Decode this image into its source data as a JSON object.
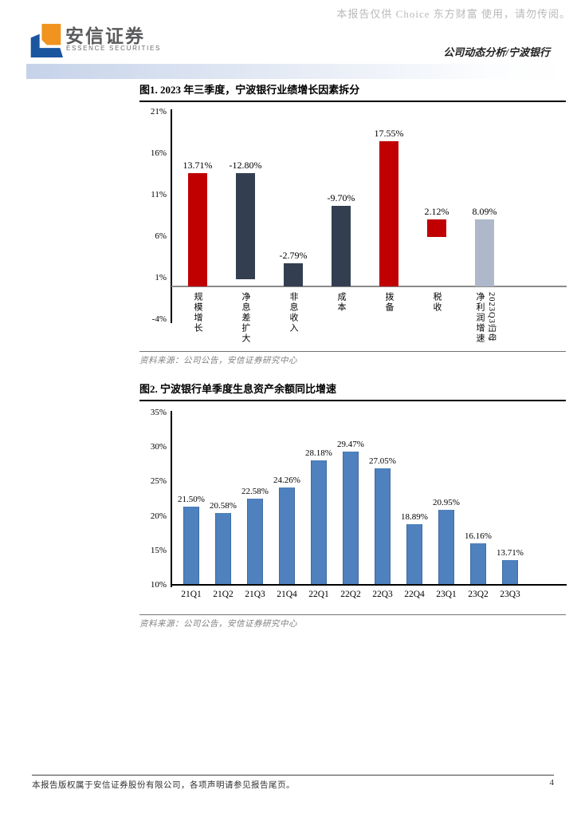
{
  "header": {
    "watermark": "本报告仅供 Choice 东方财富 使用，请勿传阅。",
    "brand_cn": "安信证券",
    "brand_en": "ESSENCE SECURITIES",
    "report_label": "公司动态分析/宁波银行",
    "logo_orange": "#f0931f",
    "logo_blue": "#1a55a0"
  },
  "figures": {
    "fig1": {
      "title": "图1. 2023 年三季度，宁波银行业绩增长因素拆分",
      "source": "资料来源：公司公告，安信证券研究中心"
    },
    "fig2": {
      "title": "图2. 宁波银行单季度生息资产余额同比增速",
      "source": "资料来源：公司公告，安信证券研究中心"
    }
  },
  "footer": {
    "copyright": "本报告版权属于安信证券股份有限公司，各项声明请参见报告尾页。",
    "page_number": "4"
  },
  "chart_data": [
    {
      "type": "bar",
      "subtype": "waterfall",
      "title": "2023 年三季度，宁波银行业绩增长因素拆分",
      "categories": [
        "规模增长",
        "净息差扩大",
        "非息收入",
        "成本",
        "拨备",
        "税收",
        "2023Q3归母净利润增速"
      ],
      "values": [
        13.71,
        -12.8,
        -2.79,
        -9.7,
        17.55,
        2.12,
        8.09
      ],
      "data_labels": [
        "13.71%",
        "-12.80%",
        "-2.79%",
        "-9.70%",
        "17.55%",
        "2.12%",
        "8.09%"
      ],
      "bar_ranges": [
        [
          0,
          13.71
        ],
        [
          0.91,
          13.71
        ],
        [
          0,
          2.79
        ],
        [
          0,
          9.7
        ],
        [
          0,
          17.55
        ],
        [
          5.97,
          8.09
        ],
        [
          0,
          8.09
        ]
      ],
      "bar_colors": [
        "#c00000",
        "#333f51",
        "#333f51",
        "#333f51",
        "#c00000",
        "#c00000",
        "#aeb8ca"
      ],
      "ylim": [
        -4,
        21
      ],
      "yticks": [
        21,
        16,
        11,
        6,
        1,
        -4
      ],
      "ytick_labels": [
        "21%",
        "16%",
        "11%",
        "6%",
        "1%",
        "-4%"
      ],
      "zero_line": 0,
      "last_label_upright": "净利润增速",
      "last_label_sideways": "2023Q3归母",
      "grid": false,
      "legend": false
    },
    {
      "type": "bar",
      "title": "宁波银行单季度生息资产余额同比增速",
      "categories": [
        "21Q1",
        "21Q2",
        "21Q3",
        "21Q4",
        "22Q1",
        "22Q2",
        "22Q3",
        "22Q4",
        "23Q1",
        "23Q2",
        "23Q3"
      ],
      "values": [
        21.5,
        20.58,
        22.58,
        24.26,
        28.18,
        29.47,
        27.05,
        18.89,
        20.95,
        16.16,
        13.71
      ],
      "data_labels": [
        "21.50%",
        "20.58%",
        "22.58%",
        "24.26%",
        "28.18%",
        "29.47%",
        "27.05%",
        "18.89%",
        "20.95%",
        "16.16%",
        "13.71%"
      ],
      "bar_color": "#4e81bd",
      "bar_border_color": "#3e6ca3",
      "ylim": [
        10,
        35
      ],
      "yticks": [
        35,
        30,
        25,
        20,
        15,
        10
      ],
      "ytick_labels": [
        "35%",
        "30%",
        "25%",
        "20%",
        "15%",
        "10%"
      ],
      "baseline": 10,
      "grid": false,
      "legend": false
    }
  ]
}
